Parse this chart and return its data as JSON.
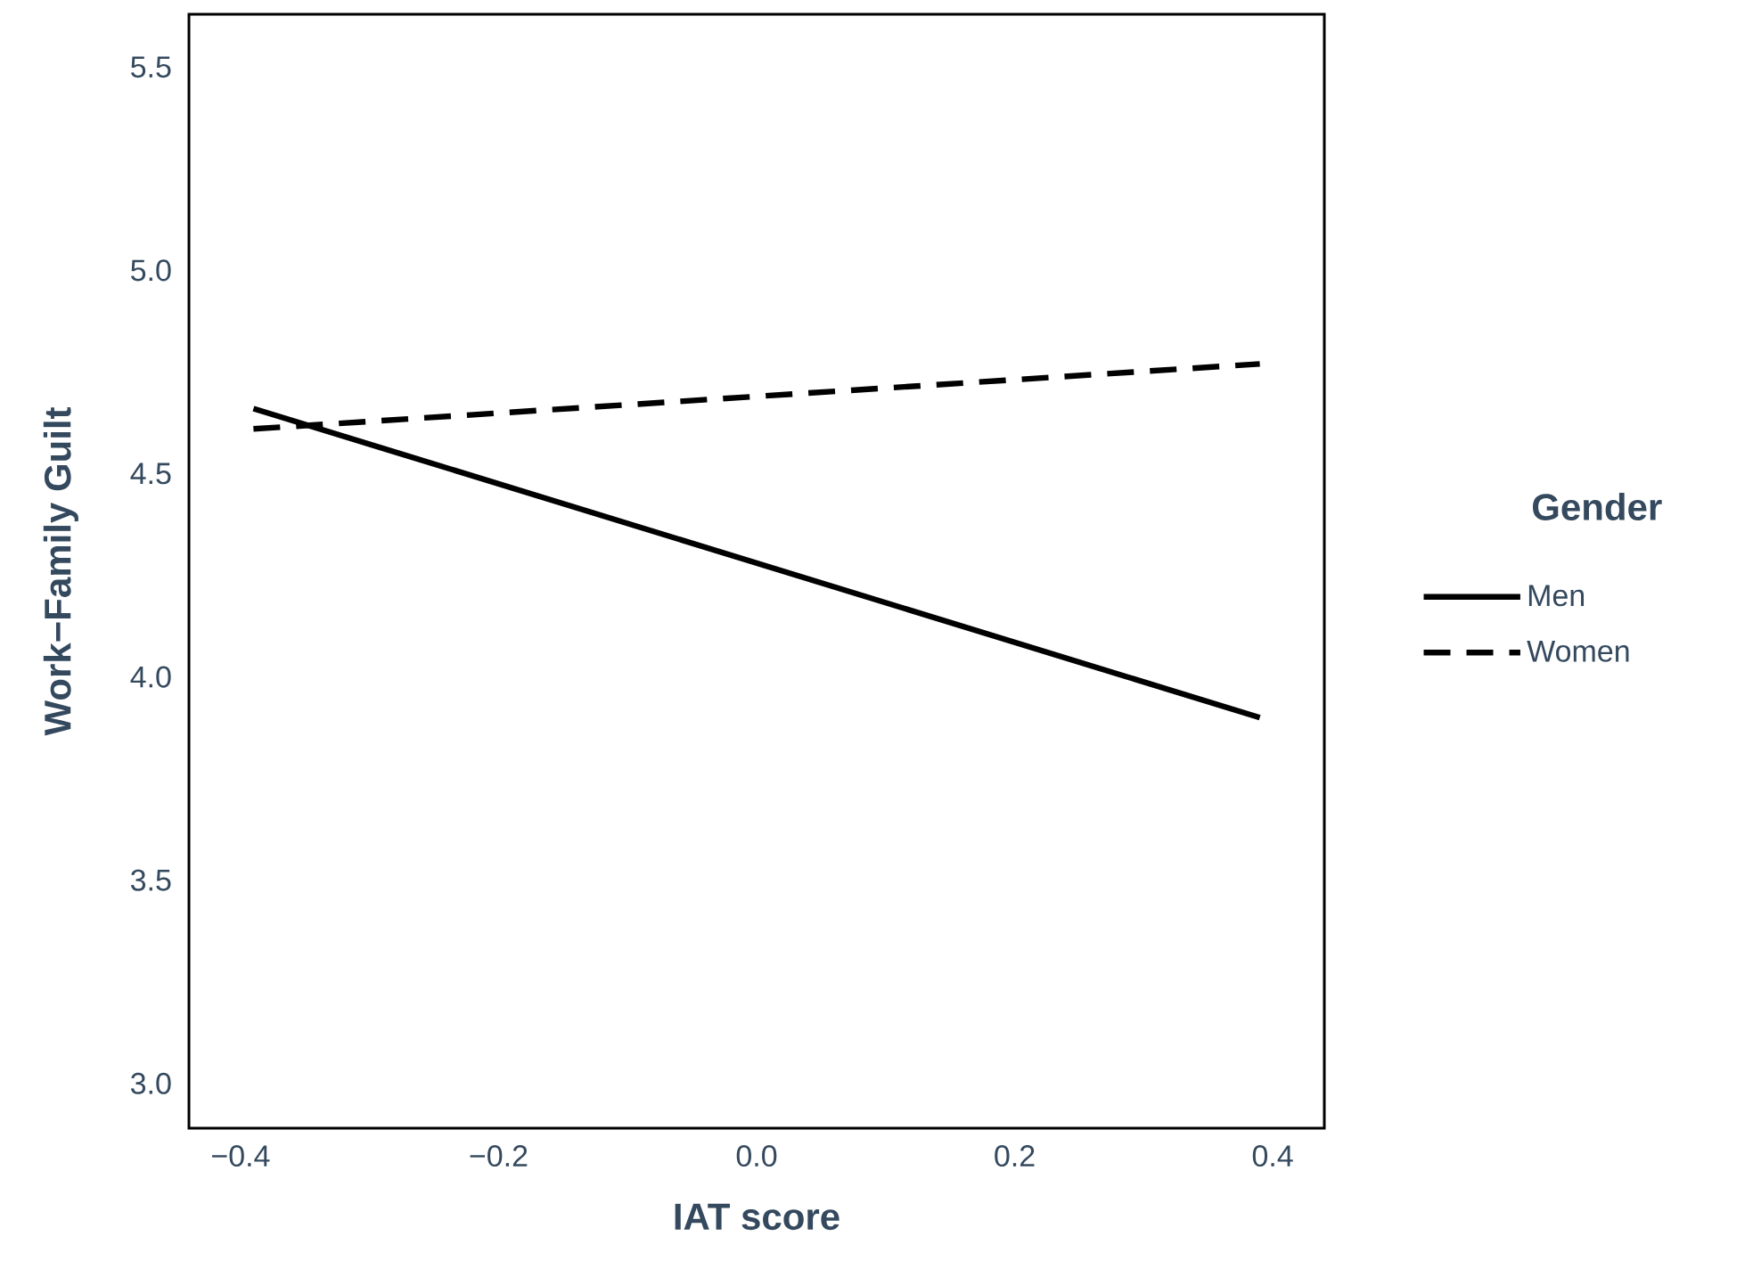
{
  "chart_data": {
    "type": "line",
    "xlabel": "IAT score",
    "ylabel": "Work−Family Guilt",
    "legend_title": "Gender",
    "xlim": [
      -0.44,
      0.44
    ],
    "ylim": [
      2.89,
      5.63
    ],
    "xticks": [
      {
        "value": -0.4,
        "label": "−0.4"
      },
      {
        "value": -0.2,
        "label": "−0.2"
      },
      {
        "value": 0,
        "label": "0.0"
      },
      {
        "value": 0.2,
        "label": "0.2"
      },
      {
        "value": 0.4,
        "label": "0.4"
      }
    ],
    "yticks": [
      {
        "value": 3,
        "label": "3.0"
      },
      3.5,
      {
        "value": 4,
        "label": "4.0"
      },
      4.5,
      {
        "value": 5,
        "label": "5.0"
      },
      5.5
    ],
    "x": [
      -0.39,
      0.39
    ],
    "series": [
      {
        "name": "Men",
        "color": "#000000",
        "line_style": "solid",
        "values": [
          4.66,
          3.9
        ]
      },
      {
        "name": "Women",
        "color": "#000000",
        "line_style": "dashed",
        "values": [
          4.61,
          4.77
        ]
      }
    ],
    "legend": "right",
    "grid": false,
    "marker": "none"
  }
}
